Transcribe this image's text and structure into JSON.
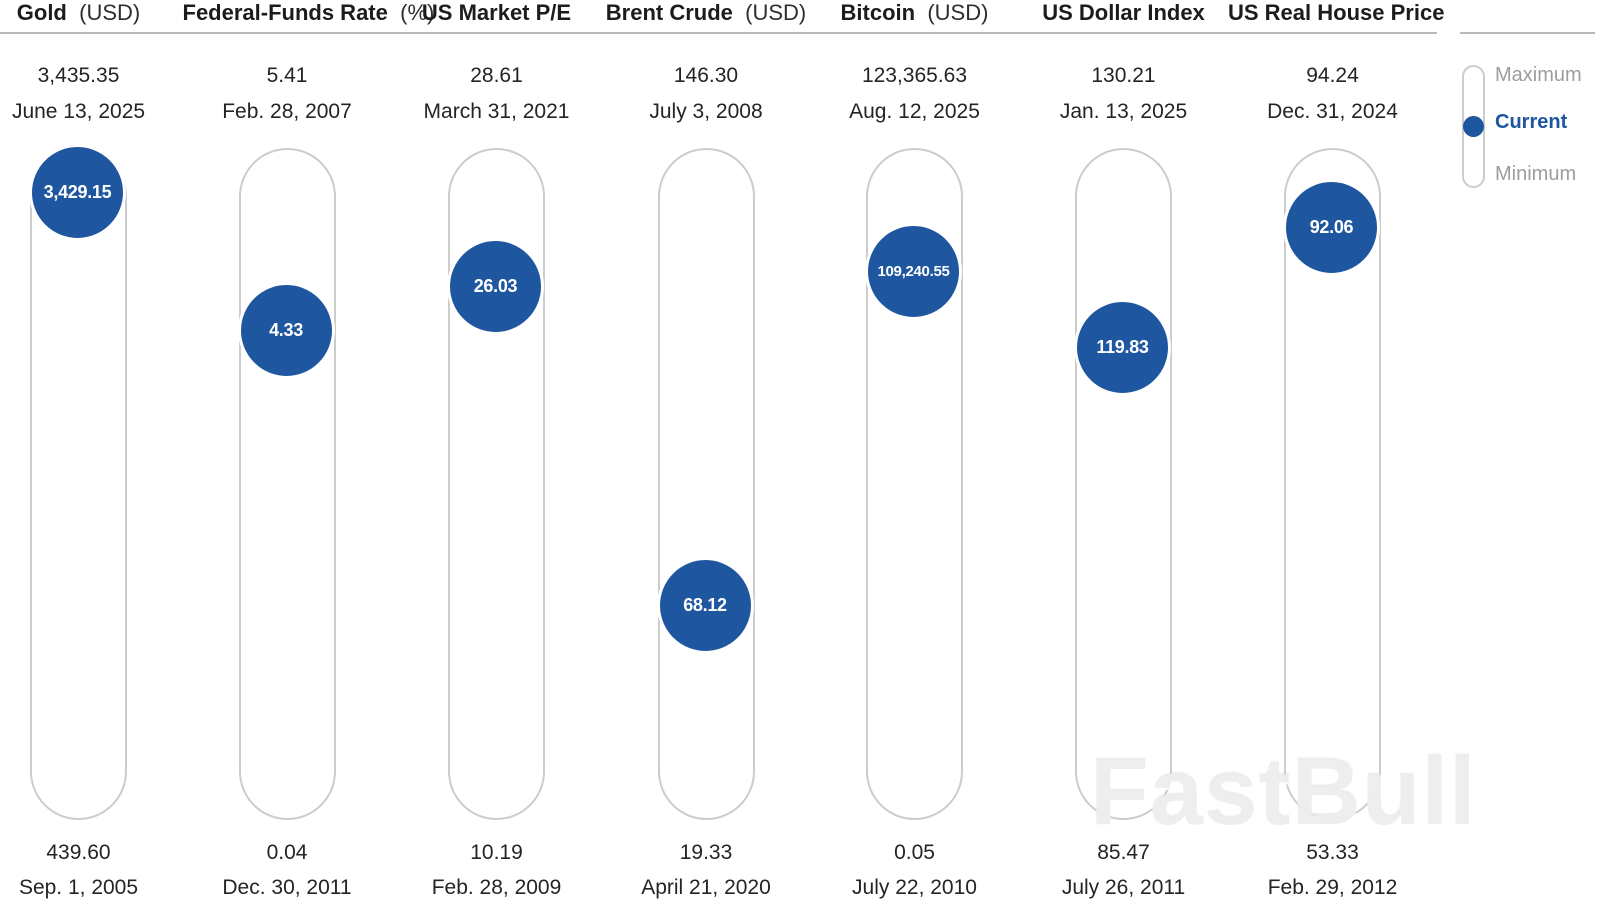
{
  "colors": {
    "current_blue": "#1e56a0",
    "track_border": "#cccccc",
    "divider": "#b9b9b9",
    "muted_text": "#9d9d9d",
    "dark_text": "#242424",
    "bubble_text": "#ffffff",
    "watermark": "#eaeaea"
  },
  "legend": {
    "items": [
      {
        "label": "Maximum"
      },
      {
        "label": "Current"
      },
      {
        "label": "Minimum"
      }
    ],
    "position": "top-right"
  },
  "watermark": "FastBull",
  "chart_data": {
    "type": "scatter",
    "subtype": "min-max-range-dot",
    "orientation": "vertical-pill-tracks",
    "grid": false,
    "legend_position": "top-right",
    "series": [
      {
        "name": "Gold",
        "unit": "(USD)",
        "max": {
          "value": 3435.35,
          "label": "3,435.35",
          "date": "June 13, 2025"
        },
        "current": {
          "value": 3429.15,
          "label": "3,429.15",
          "pos_pct_from_min": 1.0
        },
        "min": {
          "value": 439.6,
          "label": "439.60",
          "date": "Sep. 1, 2005"
        }
      },
      {
        "name": "Federal-Funds Rate",
        "unit": "(%)",
        "max": {
          "value": 5.41,
          "label": "5.41",
          "date": "Feb. 28, 2007"
        },
        "current": {
          "value": 4.33,
          "label": "4.33",
          "pos_pct_from_min": 0.76
        },
        "min": {
          "value": 0.04,
          "label": "0.04",
          "date": "Dec. 30, 2011"
        }
      },
      {
        "name": "US Market P/E",
        "unit": "",
        "max": {
          "value": 28.61,
          "label": "28.61",
          "date": "March 31, 2021"
        },
        "current": {
          "value": 26.03,
          "label": "26.03",
          "pos_pct_from_min": 0.836
        },
        "min": {
          "value": 10.19,
          "label": "10.19",
          "date": "Feb. 28, 2009"
        }
      },
      {
        "name": "Brent Crude",
        "unit": "(USD)",
        "max": {
          "value": 146.3,
          "label": "146.30",
          "date": "July 3, 2008"
        },
        "current": {
          "value": 68.12,
          "label": "68.12",
          "pos_pct_from_min": 0.285
        },
        "min": {
          "value": 19.33,
          "label": "19.33",
          "date": "April 21, 2020"
        }
      },
      {
        "name": "Bitcoin",
        "unit": "(USD)",
        "max": {
          "value": 123365.63,
          "label": "123,365.63",
          "date": "Aug. 12, 2025"
        },
        "current": {
          "value": 109240.55,
          "label": "109,240.55",
          "pos_pct_from_min": 0.863
        },
        "min": {
          "value": 0.05,
          "label": "0.05",
          "date": "July 22, 2010"
        }
      },
      {
        "name": "US Dollar Index",
        "unit": "",
        "max": {
          "value": 130.21,
          "label": "130.21",
          "date": "Jan. 13, 2025"
        },
        "current": {
          "value": 119.83,
          "label": "119.83",
          "pos_pct_from_min": 0.731
        },
        "min": {
          "value": 85.47,
          "label": "85.47",
          "date": "July 26, 2011"
        }
      },
      {
        "name": "US Real House Price",
        "unit": "",
        "max": {
          "value": 94.24,
          "label": "94.24",
          "date": "Dec. 31, 2024"
        },
        "current": {
          "value": 92.06,
          "label": "92.06",
          "pos_pct_from_min": 0.938
        },
        "min": {
          "value": 53.33,
          "label": "53.33",
          "date": "Feb. 29, 2012"
        }
      }
    ]
  }
}
